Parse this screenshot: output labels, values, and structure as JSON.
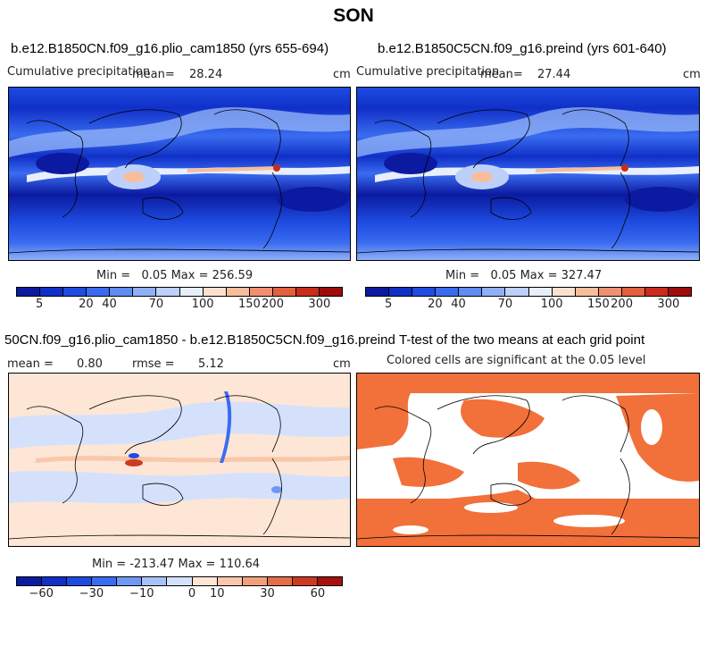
{
  "figure": {
    "title": "SON"
  },
  "colors": {
    "precip_scale": [
      "#0b1aa0",
      "#1030c8",
      "#1e4be0",
      "#3a6cf0",
      "#5e8cf2",
      "#8fb0f6",
      "#bdd0fa",
      "#e8eefc",
      "#fde1cf",
      "#f8bd9c",
      "#f09070",
      "#e2603c",
      "#c92c1a",
      "#9e0c0c"
    ],
    "diff_scale": [
      "#0b1aa0",
      "#1030c8",
      "#1e4be0",
      "#3a6cf0",
      "#6f98f4",
      "#a8c2f8",
      "#d5e1fb",
      "#fde6d6",
      "#f9c7ab",
      "#f2a07c",
      "#e36e47",
      "#cc3a22",
      "#a8100e"
    ],
    "ttest_fill": "#f2703a"
  },
  "panels": [
    {
      "title": "b.e12.B1850CN.f09_g16.plio_cam1850 (yrs 655-694)",
      "variable": "Cumulative precipitation",
      "mean_label": "mean=",
      "mean_value": "28.24",
      "units": "cm",
      "min_max": "Min =   0.05 Max = 256.59"
    },
    {
      "title": "b.e12.B1850C5CN.f09_g16.preind (yrs 601-640)",
      "variable": "Cumulative precipitation",
      "mean_label": "mean=",
      "mean_value": "27.44",
      "units": "cm",
      "min_max": "Min =   0.05 Max = 327.47"
    },
    {
      "title": "50CN.f09_g16.plio_cam1850 - b.e12.B1850C5CN.f09_g16.preind",
      "mean_label": "mean =",
      "mean_value": "0.80",
      "rmse_label": "rmse =",
      "rmse_value": "5.12",
      "units": "cm",
      "min_max": "Min = -213.47 Max = 110.64"
    },
    {
      "title": "T-test of the two means at each grid point",
      "subtitle": "Colored cells are significant at the 0.05 level"
    }
  ],
  "chart_data": [
    {
      "type": "heatmap",
      "title": "b.e12.B1850CN.f09_g16.plio_cam1850 (yrs 655-694)",
      "colorbar_levels": [
        5,
        20,
        40,
        70,
        100,
        150,
        200,
        300
      ],
      "mean": 28.24,
      "min": 0.05,
      "max": 256.59,
      "units": "cm"
    },
    {
      "type": "heatmap",
      "title": "b.e12.B1850C5CN.f09_g16.preind (yrs 601-640)",
      "colorbar_levels": [
        5,
        20,
        40,
        70,
        100,
        150,
        200,
        300
      ],
      "mean": 27.44,
      "min": 0.05,
      "max": 327.47,
      "units": "cm"
    },
    {
      "type": "heatmap",
      "title": "50CN.f09_g16.plio_cam1850 - b.e12.B1850C5CN.f09_g16.preind",
      "colorbar_levels": [
        -60,
        -30,
        -10,
        0,
        10,
        30,
        60
      ],
      "mean": 0.8,
      "rmse": 5.12,
      "min": -213.47,
      "max": 110.64,
      "units": "cm"
    },
    {
      "type": "heatmap",
      "title": "T-test of the two means at each grid point"
    }
  ]
}
